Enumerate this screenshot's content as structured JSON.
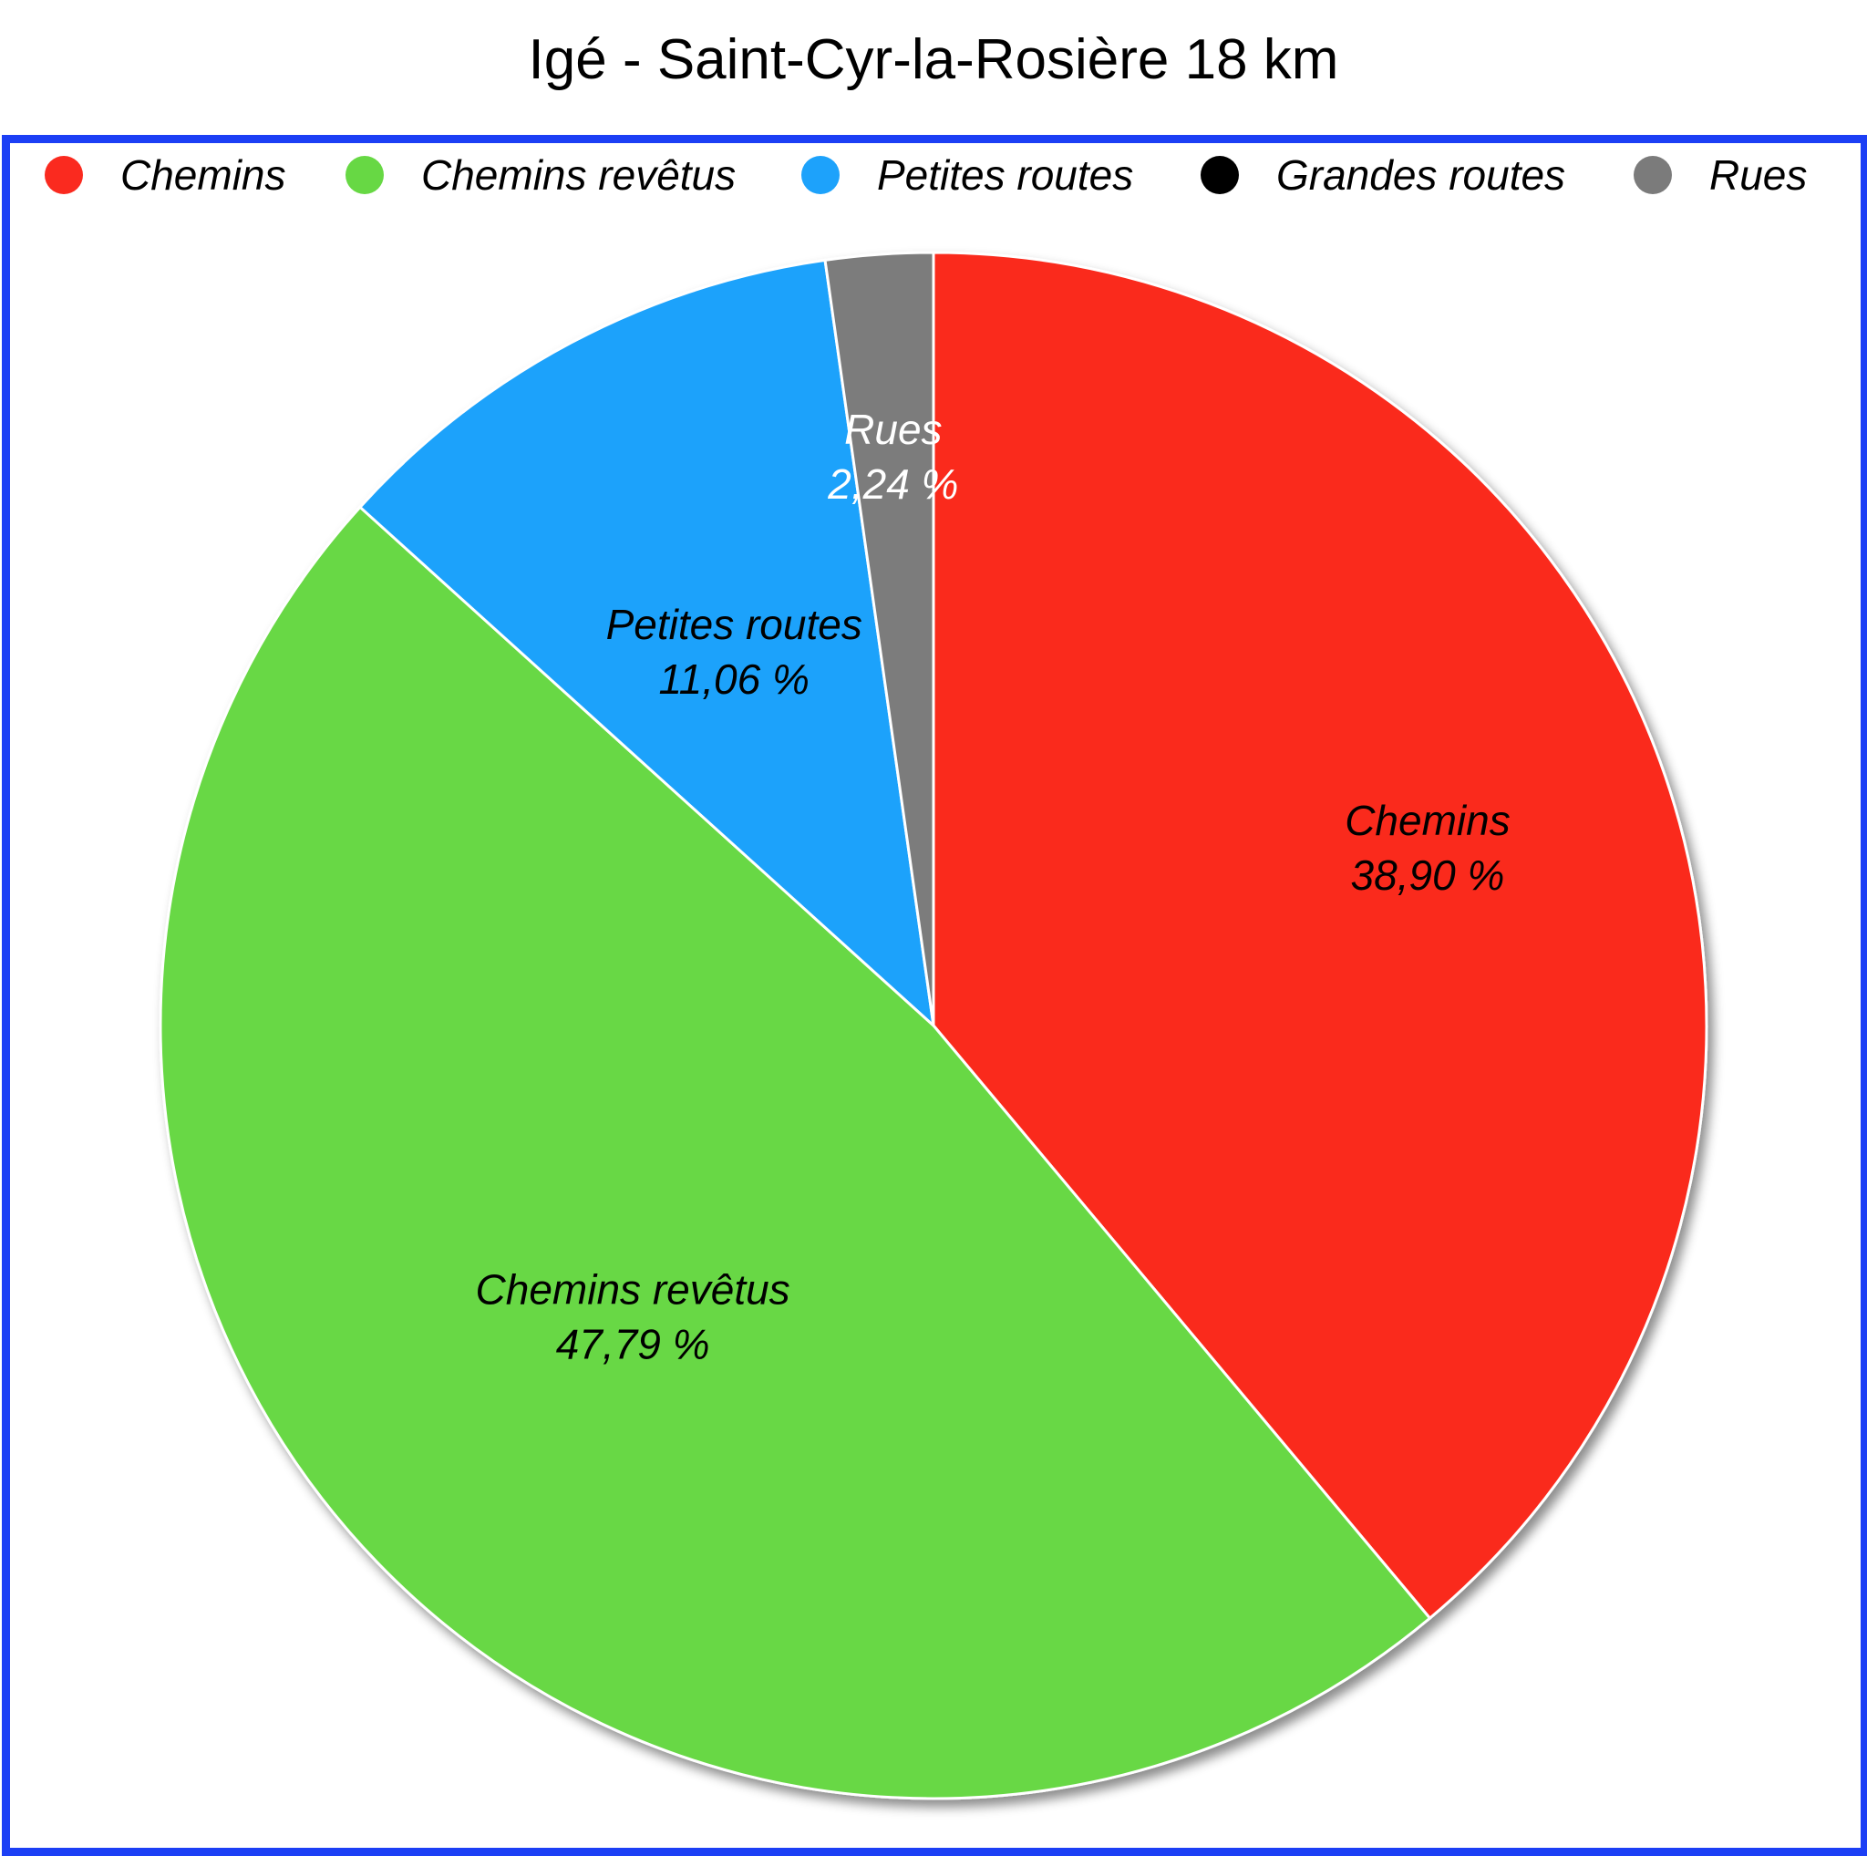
{
  "chart_data": {
    "type": "pie",
    "title": "Igé - Saint-Cyr-la-Rosière 18 km",
    "legend_position": "top",
    "slices": [
      {
        "label": "Chemins",
        "value": 38.9,
        "value_text": "38,90 %",
        "color": "#fa2a1f",
        "label_color": "#000000"
      },
      {
        "label": "Chemins revêtus",
        "value": 47.79,
        "value_text": "47,79 %",
        "color": "#67d844",
        "label_color": "#000000"
      },
      {
        "label": "Petites routes",
        "value": 11.06,
        "value_text": "11,06 %",
        "color": "#1da2fb",
        "label_color": "#000000"
      },
      {
        "label": "Grandes routes",
        "value": 0,
        "value_text": "",
        "color": "#000000",
        "label_color": "#000000"
      },
      {
        "label": "Rues",
        "value": 2.24,
        "value_text": "2,24 %",
        "color": "#7b7b7b",
        "label_color": "#ffffff"
      }
    ],
    "frame_color": "#1c3ff5"
  }
}
